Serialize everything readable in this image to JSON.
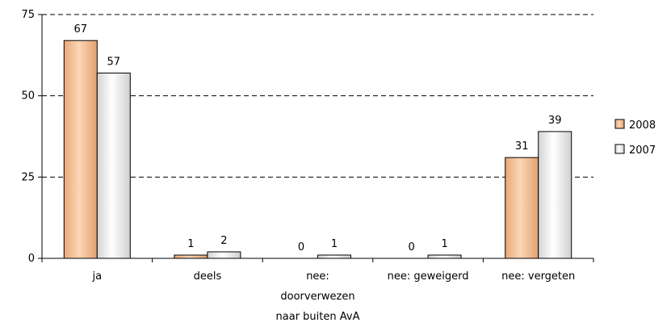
{
  "chart_data": {
    "type": "bar",
    "categories": [
      [
        "ja"
      ],
      [
        "deels"
      ],
      [
        "nee:",
        "doorverwezen",
        "naar buiten AvA"
      ],
      [
        "nee: geweigerd"
      ],
      [
        "nee: vergeten"
      ]
    ],
    "series": [
      {
        "name": "2008",
        "values": [
          67,
          1,
          0,
          0,
          31
        ],
        "color": "#f4b183"
      },
      {
        "name": "2007",
        "values": [
          57,
          2,
          1,
          1,
          39
        ],
        "color": "#e6e6e6"
      }
    ],
    "y_ticks": [
      "0",
      "25",
      "50",
      "75"
    ],
    "ylim": [
      0,
      75
    ],
    "grid": "dashed",
    "legend_position": "right"
  }
}
